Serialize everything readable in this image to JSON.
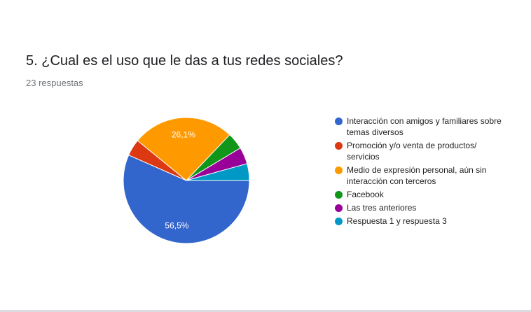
{
  "question": {
    "title": "5. ¿Cual es el uso que le das a tus redes sociales?",
    "response_count": "23 respuestas"
  },
  "chart_data": {
    "type": "pie",
    "title": "5. ¿Cual es el uso que le das a tus redes sociales?",
    "legend_position": "right",
    "series": [
      {
        "label": "Interacción con amigos y familiares sobre temas diversos",
        "value": 56.5,
        "color": "#3366cc",
        "data_label": "56,5%"
      },
      {
        "label": "Promoción y/o venta de productos/ servicios",
        "value": 4.3,
        "color": "#dc3912",
        "data_label": ""
      },
      {
        "label": "Medio de expresión personal, aún sin interacción con terceros",
        "value": 26.1,
        "color": "#ff9900",
        "data_label": "26,1%"
      },
      {
        "label": "Facebook",
        "value": 4.3,
        "color": "#109618",
        "data_label": ""
      },
      {
        "label": "Las tres anteriores",
        "value": 4.3,
        "color": "#990099",
        "data_label": ""
      },
      {
        "label": "Respuesta 1 y respuesta 3",
        "value": 4.3,
        "color": "#0099c6",
        "data_label": ""
      }
    ]
  }
}
